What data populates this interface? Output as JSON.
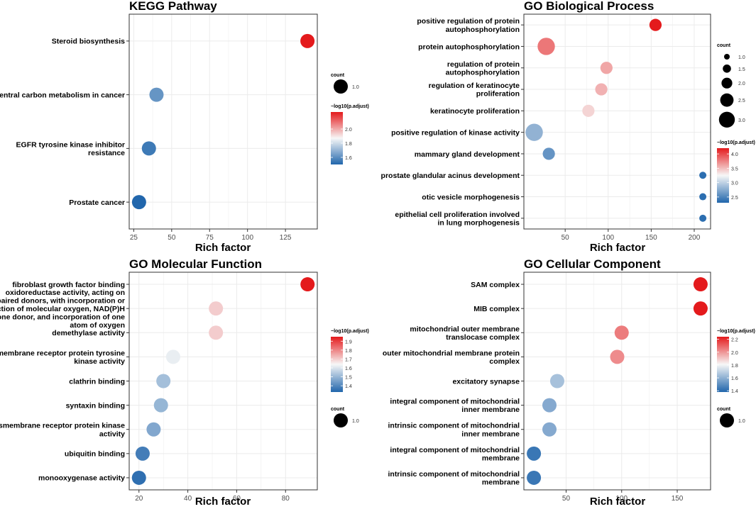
{
  "palette": {
    "low": "#2166ac",
    "mid": "#f7f7f7",
    "high": "#e41a1c",
    "panel_border": "#333333",
    "grid": "#ebebeb",
    "text": "#000000"
  },
  "chart_data": [
    {
      "type": "scatter",
      "title": "KEGG Pathway",
      "xlabel": "Rich factor",
      "ylabel": "",
      "xlim": [
        22,
        146
      ],
      "xticks": [
        25,
        50,
        75,
        100,
        125
      ],
      "grid": true,
      "categories": [
        "Steroid biosynthesis",
        "Central carbon metabolism in cancer",
        "EGFR tyrosine kinase inhibitor\nresistance",
        "Prostate cancer"
      ],
      "x": [
        139.5,
        40,
        35,
        28.5
      ],
      "count": [
        1,
        1,
        1,
        1
      ],
      "color_value": [
        2.24,
        1.62,
        1.55,
        1.5
      ],
      "color_legend": {
        "title": "−log10(p.adjust)",
        "range": [
          1.5,
          2.24
        ],
        "ticks": [
          1.6,
          1.8,
          2.0
        ]
      },
      "size_legend": {
        "title": "count",
        "values": [
          1
        ]
      }
    },
    {
      "type": "scatter",
      "title": "GO Biological Process",
      "xlabel": "Rich factor",
      "ylabel": "",
      "xlim": [
        2,
        219
      ],
      "xticks": [
        50,
        100,
        150,
        200
      ],
      "grid": true,
      "categories": [
        "positive regulation of protein\nautophosphorylation",
        "protein autophosphorylation",
        "regulation of protein\nautophosphorylation",
        "regulation of keratinocyte\nproliferation",
        "keratinocyte proliferation",
        "positive regulation of kinase activity",
        "mammary gland development",
        "prostate glandular acinus development",
        "otic vesicle morphogenesis",
        "epithelial cell proliferation involved\nin lung morphogenesis"
      ],
      "x": [
        155,
        28,
        98,
        92,
        77,
        14,
        31,
        210,
        210,
        210
      ],
      "count": [
        2,
        3,
        2,
        2,
        2,
        3,
        2,
        1,
        1,
        1
      ],
      "color_value": [
        4.2,
        3.8,
        3.6,
        3.55,
        3.4,
        2.8,
        2.6,
        2.35,
        2.35,
        2.35
      ],
      "color_legend": {
        "title": "−log10(p.adjust)",
        "range": [
          2.3,
          4.2
        ],
        "ticks": [
          2.5,
          3.0,
          3.5,
          4.0
        ]
      },
      "size_legend": {
        "title": "count",
        "values": [
          1.0,
          1.5,
          2.0,
          2.5,
          3.0
        ]
      }
    },
    {
      "type": "scatter",
      "title": "GO Molecular Function",
      "xlabel": "Rich factor",
      "ylabel": "",
      "xlim": [
        16,
        93
      ],
      "xticks": [
        20,
        40,
        60,
        80
      ],
      "grid": true,
      "categories": [
        "fibroblast growth factor binding",
        "oxidoreductase activity, acting on\npaired donors, with incorporation or\nreduction of molecular oxygen, NAD(P)H\nas one donor, and incorporation of one\natom of oxygen",
        "demethylase activity",
        "transmembrane receptor protein tyrosine\nkinase activity",
        "clathrin binding",
        "syntaxin binding",
        "transmembrane receptor protein kinase\nactivity",
        "ubiquitin binding",
        "monooxygenase activity"
      ],
      "x": [
        89,
        51.5,
        51.5,
        34,
        30,
        29,
        26,
        21.5,
        20
      ],
      "count": [
        1,
        1,
        1,
        1,
        1,
        1,
        1,
        1,
        1
      ],
      "color_value": [
        1.95,
        1.7,
        1.7,
        1.62,
        1.52,
        1.5,
        1.47,
        1.38,
        1.35
      ],
      "color_legend": {
        "title": "−log10(p.adjust)",
        "range": [
          1.33,
          1.95
        ],
        "ticks": [
          1.4,
          1.5,
          1.6,
          1.7,
          1.8,
          1.9
        ]
      },
      "size_legend": {
        "title": "count",
        "values": [
          1
        ]
      }
    },
    {
      "type": "scatter",
      "title": "GO Cellular Component",
      "xlabel": "Rich factor",
      "ylabel": "",
      "xlim": [
        12,
        180
      ],
      "xticks": [
        50,
        100,
        150
      ],
      "grid": true,
      "categories": [
        "SAM complex",
        "MIB complex",
        "mitochondrial outer membrane\ntranslocase complex",
        "outer mitochondrial membrane protein\ncomplex",
        "excitatory synapse",
        "integral component of mitochondrial\ninner membrane",
        "intrinsic component of mitochondrial\ninner membrane",
        "integral component of mitochondrial\nmembrane",
        "intrinsic component of mitochondrial\nmembrane"
      ],
      "x": [
        171,
        171,
        100,
        96,
        42,
        35,
        35,
        21,
        21
      ],
      "count": [
        1,
        1,
        1,
        1,
        1,
        1,
        1,
        1,
        1
      ],
      "color_value": [
        2.24,
        2.24,
        2.05,
        2.02,
        1.65,
        1.58,
        1.58,
        1.43,
        1.43
      ],
      "color_legend": {
        "title": "−log10(p.adjust)",
        "range": [
          1.38,
          2.24
        ],
        "ticks": [
          1.4,
          1.6,
          1.8,
          2.0,
          2.2
        ]
      },
      "size_legend": {
        "title": "count",
        "values": [
          1
        ]
      }
    }
  ]
}
